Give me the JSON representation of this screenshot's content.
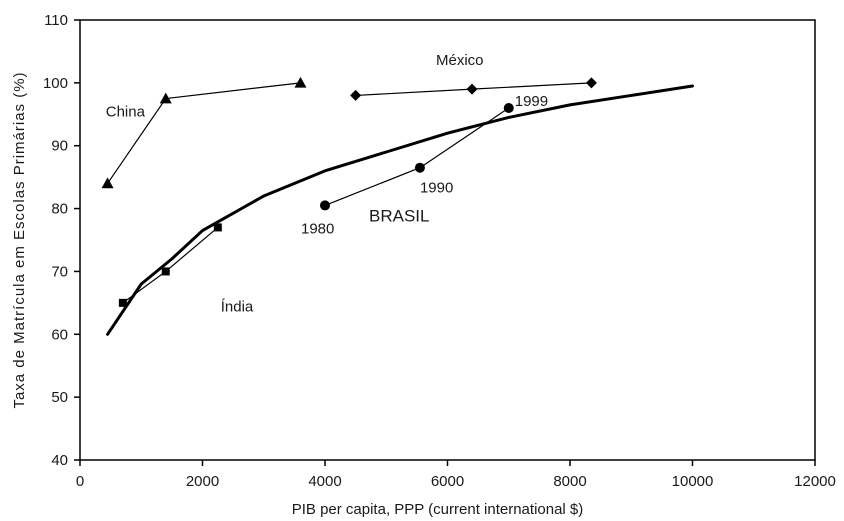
{
  "chart_data": {
    "type": "scatter",
    "xlabel": "PIB per capita, PPP (current international $)",
    "ylabel": "Taxa de Matrícula em Escolas Primárias (%)",
    "xlim": [
      0,
      12000
    ],
    "ylim": [
      40,
      110
    ],
    "xticks": [
      0,
      2000,
      4000,
      6000,
      8000,
      10000,
      12000
    ],
    "yticks": [
      40,
      50,
      60,
      70,
      80,
      90,
      100,
      110
    ],
    "grid": false,
    "series": [
      {
        "name": "China",
        "marker": "triangle",
        "x": [
          450,
          1400,
          3600
        ],
        "y": [
          84,
          97.5,
          100
        ]
      },
      {
        "name": "México",
        "marker": "diamond",
        "x": [
          4500,
          6400,
          8350
        ],
        "y": [
          98,
          99,
          100
        ]
      },
      {
        "name": "Índia",
        "marker": "square",
        "x": [
          700,
          1400,
          2250
        ],
        "y": [
          65,
          70,
          77
        ]
      },
      {
        "name": "BRASIL",
        "marker": "circle",
        "x": [
          4000,
          5550,
          7000
        ],
        "y": [
          80.5,
          86.5,
          96
        ]
      },
      {
        "name": "",
        "marker": "none",
        "style": "trend",
        "x": [
          450,
          1000,
          1500,
          2000,
          3000,
          4000,
          5000,
          6000,
          7000,
          8000,
          9000,
          10000
        ],
        "y": [
          60,
          68,
          72,
          76.5,
          82,
          86,
          89,
          92,
          94.5,
          96.5,
          98,
          99.5
        ]
      }
    ],
    "point_labels": [
      {
        "text": "1980",
        "x": 4000,
        "y": 80.5
      },
      {
        "text": "1990",
        "x": 5550,
        "y": 86.5
      },
      {
        "text": "1999",
        "x": 7000,
        "y": 96
      }
    ]
  }
}
